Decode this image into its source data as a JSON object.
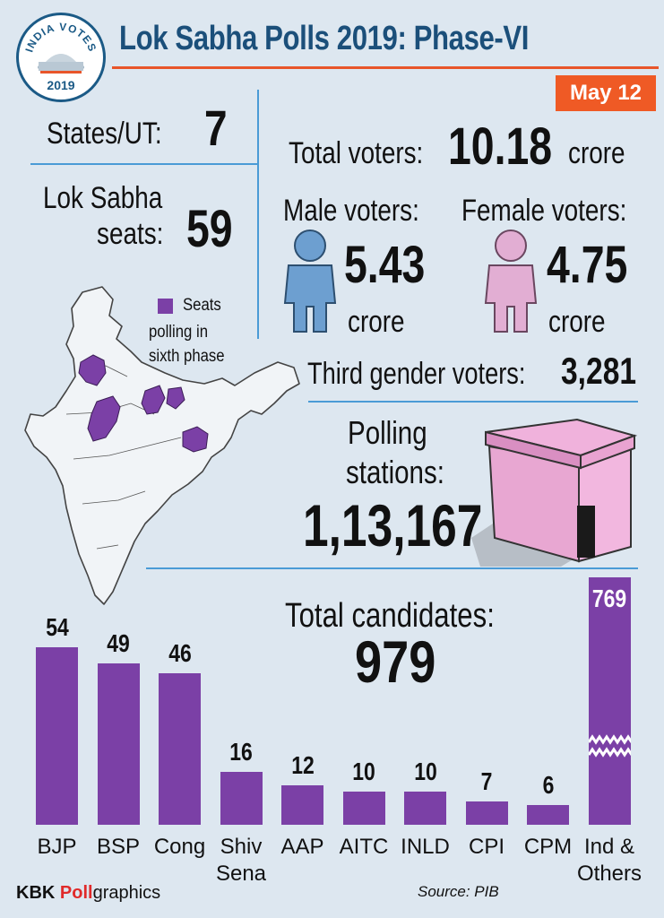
{
  "header": {
    "logo_top_text": "INDIA VOTES",
    "logo_year": "2019",
    "title": "Lok Sabha Polls 2019: Phase-VI",
    "date": "May 12"
  },
  "stats": {
    "states_label": "States/UT:",
    "states_value": "7",
    "seats_label_line1": "Lok Sabha",
    "seats_label_line2": "seats:",
    "seats_value": "59",
    "total_voters_label": "Total voters:",
    "total_voters_value": "10.18",
    "total_voters_unit": "crore",
    "male_label": "Male voters:",
    "male_value": "5.43",
    "male_unit": "crore",
    "female_label": "Female voters:",
    "female_value": "4.75",
    "female_unit": "crore",
    "third_gender_label": "Third gender voters:",
    "third_gender_value": "3,281",
    "polling_label_line1": "Polling",
    "polling_label_line2": "stations:",
    "polling_value": "1,13,167",
    "candidates_label": "Total candidates:",
    "candidates_value": "979"
  },
  "map": {
    "legend_line1": "Seats",
    "legend_line2": "polling in",
    "legend_line3": "sixth phase"
  },
  "colors": {
    "bar": "#7b40a6",
    "accent": "#ef5a25",
    "title": "#1b4f7a",
    "rule": "#4a9bd6",
    "male": "#6d9fd0",
    "female": "#e2aed3"
  },
  "chart_data": {
    "type": "bar",
    "title": "Total candidates: 979",
    "categories": [
      "BJP",
      "BSP",
      "Cong",
      "Shiv Sena",
      "AAP",
      "AITC",
      "INLD",
      "CPI",
      "CPM",
      "Ind & Others"
    ],
    "category_lines": [
      [
        "BJP"
      ],
      [
        "BSP"
      ],
      [
        "Cong"
      ],
      [
        "Shiv",
        "Sena"
      ],
      [
        "AAP"
      ],
      [
        "AITC"
      ],
      [
        "INLD"
      ],
      [
        "CPI"
      ],
      [
        "CPM"
      ],
      [
        "Ind &",
        "Others"
      ]
    ],
    "values": [
      54,
      49,
      46,
      16,
      12,
      10,
      10,
      7,
      6,
      769
    ],
    "labels": [
      "54",
      "49",
      "46",
      "16",
      "12",
      "10",
      "10",
      "7",
      "6",
      "769"
    ],
    "broken_axis_category": "Ind & Others",
    "grid": false
  },
  "footer": {
    "brand_bold": "KBK",
    "brand_red": "Poll",
    "brand_rest": "graphics",
    "source": "Source: PIB"
  }
}
